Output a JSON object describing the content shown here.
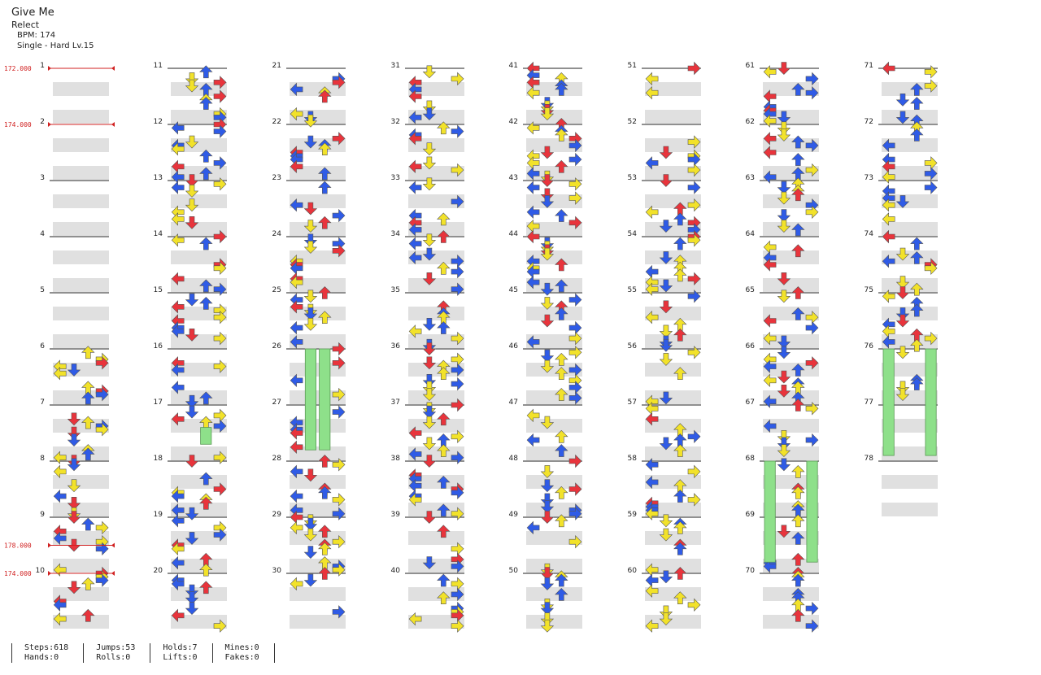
{
  "song": {
    "title": "Give Me",
    "artist": "Relect",
    "bpm_text": "BPM: 174",
    "difficulty_text": "Single - Hard  Lv.15"
  },
  "bpm_changes": [
    {
      "measure": 1,
      "label": "172.000"
    },
    {
      "measure": 2,
      "label": "174.000"
    },
    {
      "measure": 9.5,
      "label": "178.000"
    },
    {
      "measure": 10,
      "label": "174.000"
    }
  ],
  "measure_count": 78,
  "colors": {
    "quarter": "#e8343c",
    "eighth": "#2f5be6",
    "sixteenth": "#f2e22a",
    "hold": "#8ee08a",
    "bpm": "#d02020",
    "stripe": "#e0e0e0"
  },
  "icons": [
    "arrow-left-icon",
    "arrow-down-icon",
    "arrow-up-icon",
    "arrow-right-icon",
    "hold-icon"
  ],
  "holds": [
    {
      "lane": 2,
      "start": 17.4,
      "end": 17.7
    },
    {
      "lane": 1,
      "start": 26,
      "end": 27.8
    },
    {
      "lane": 2,
      "start": 26,
      "end": 27.8
    },
    {
      "lane": 0,
      "start": 68,
      "end": 69.8
    },
    {
      "lane": 3,
      "start": 68,
      "end": 69.8
    },
    {
      "lane": 0,
      "start": 76,
      "end": 77.9
    },
    {
      "lane": 3,
      "start": 76,
      "end": 77.9
    }
  ],
  "stats": [
    [
      "Steps:618",
      "Hands:0"
    ],
    [
      "Jumps:53",
      "Rolls:0"
    ],
    [
      "Holds:7",
      "Lifts:0"
    ],
    [
      "Mines:0",
      "Fakes:0"
    ]
  ]
}
